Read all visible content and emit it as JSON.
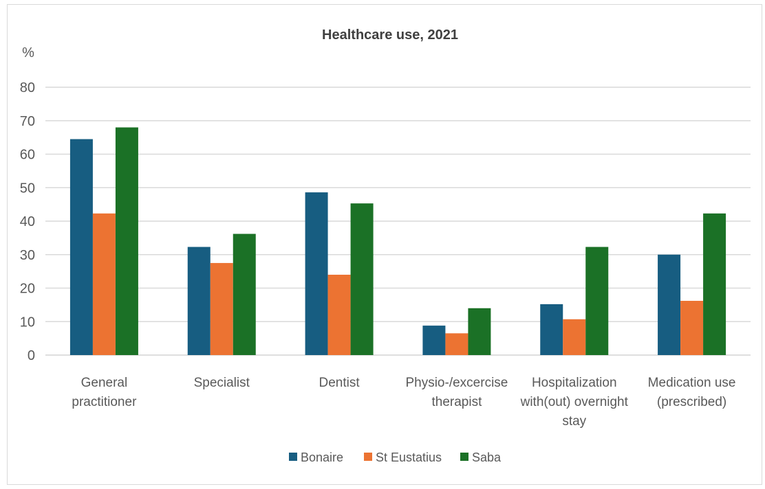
{
  "chart_data": {
    "type": "bar",
    "title": "Healthcare use, 2021",
    "ylabel": "%",
    "ylim": [
      0,
      80
    ],
    "yticks": [
      0,
      10,
      20,
      30,
      40,
      50,
      60,
      70,
      80
    ],
    "grid": true,
    "legend_position": "bottom",
    "categories": [
      [
        "General",
        "practitioner"
      ],
      [
        "Specialist"
      ],
      [
        "Dentist"
      ],
      [
        "Physio-/excercise",
        "therapist"
      ],
      [
        "Hospitalization",
        "with(out) overnight",
        "stay"
      ],
      [
        "Medication use",
        "(prescribed)"
      ]
    ],
    "series": [
      {
        "name": "Bonaire",
        "color": "#175d81",
        "values": [
          64.5,
          32.3,
          48.6,
          8.8,
          15.2,
          30.0
        ]
      },
      {
        "name": "St Eustatius",
        "color": "#ec7332",
        "values": [
          42.3,
          27.5,
          24.0,
          6.5,
          10.7,
          16.2
        ]
      },
      {
        "name": "Saba",
        "color": "#1b7126",
        "values": [
          68.0,
          36.2,
          45.3,
          14.0,
          32.3,
          42.3
        ]
      }
    ]
  }
}
